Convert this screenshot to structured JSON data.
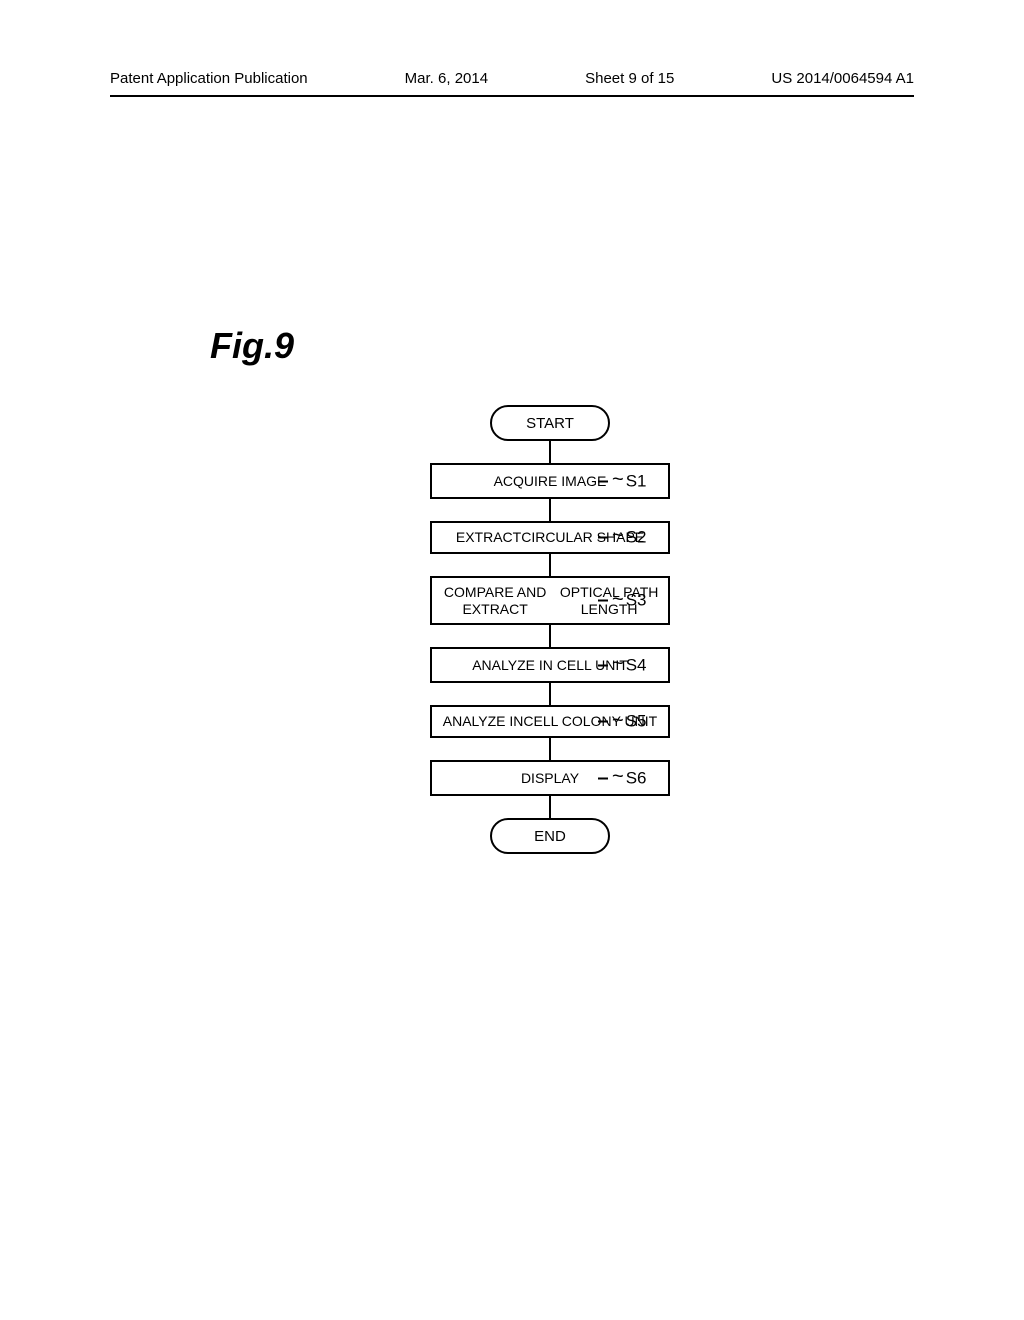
{
  "header": {
    "publication_type": "Patent Application Publication",
    "date": "Mar. 6, 2014",
    "sheet": "Sheet 9 of 15",
    "patent_number": "US 2014/0064594 A1"
  },
  "figure": {
    "label": "Fig.9"
  },
  "flowchart": {
    "type": "flowchart",
    "start": "START",
    "end": "END",
    "steps": [
      {
        "id": "S1",
        "text": "ACQUIRE IMAGE",
        "lines": 1
      },
      {
        "id": "S2",
        "text_line1": "EXTRACT",
        "text_line2": "CIRCULAR SHAPE",
        "lines": 2
      },
      {
        "id": "S3",
        "text_line1": "COMPARE AND EXTRACT",
        "text_line2": "OPTICAL PATH LENGTH",
        "lines": 2
      },
      {
        "id": "S4",
        "text": "ANALYZE IN CELL UNIT",
        "lines": 1
      },
      {
        "id": "S5",
        "text_line1": "ANALYZE IN",
        "text_line2": "CELL COLONY UNIT",
        "lines": 2
      },
      {
        "id": "S6",
        "text": "DISPLAY",
        "lines": 1
      }
    ]
  },
  "style": {
    "background_color": "#ffffff",
    "line_color": "#000000",
    "text_color": "#000000",
    "terminal_width": 120,
    "terminal_height": 36,
    "process_width": 240,
    "border_width": 2,
    "font_family": "Arial"
  }
}
